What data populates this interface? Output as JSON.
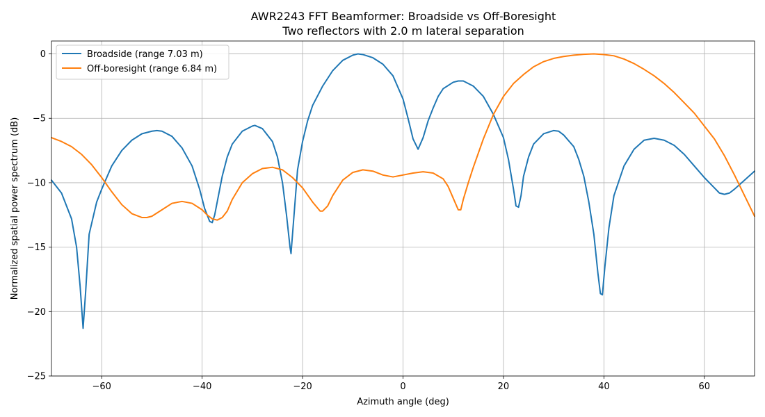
{
  "chart_data": {
    "type": "line",
    "title": "AWR2243 FFT Beamformer: Broadside vs Off-Boresight",
    "subtitle": "Two reflectors with 2.0 m lateral separation",
    "xlabel": "Azimuth angle (deg)",
    "ylabel": "Normalized spatial power spectrum (dB)",
    "xlim": [
      -70,
      70
    ],
    "ylim": [
      -25,
      1
    ],
    "xticks": [
      -60,
      -40,
      -20,
      0,
      20,
      40,
      60
    ],
    "yticks": [
      0,
      -5,
      -10,
      -15,
      -20,
      -25
    ],
    "xtick_labels": [
      "−60",
      "−40",
      "−20",
      "0",
      "20",
      "40",
      "60"
    ],
    "ytick_labels": [
      "0",
      "−5",
      "−10",
      "−15",
      "−20",
      "−25"
    ],
    "grid": true,
    "legend_position": "top-left",
    "series": [
      {
        "name": "Broadside (range 7.03 m)",
        "color": "#1f77b4",
        "points": [
          [
            -70,
            -9.8
          ],
          [
            -68,
            -10.8
          ],
          [
            -66,
            -12.8
          ],
          [
            -65,
            -15.0
          ],
          [
            -64.3,
            -18.0
          ],
          [
            -63.7,
            -21.3
          ],
          [
            -63.2,
            -18.5
          ],
          [
            -62.5,
            -14.0
          ],
          [
            -61,
            -11.5
          ],
          [
            -60,
            -10.5
          ],
          [
            -58,
            -8.7
          ],
          [
            -56,
            -7.5
          ],
          [
            -54,
            -6.7
          ],
          [
            -52,
            -6.2
          ],
          [
            -50,
            -6.0
          ],
          [
            -49,
            -5.95
          ],
          [
            -48,
            -6.0
          ],
          [
            -46,
            -6.4
          ],
          [
            -44,
            -7.3
          ],
          [
            -42,
            -8.7
          ],
          [
            -40.5,
            -10.5
          ],
          [
            -39.5,
            -12.0
          ],
          [
            -38.5,
            -13.0
          ],
          [
            -38,
            -13.1
          ],
          [
            -37.5,
            -12.5
          ],
          [
            -37,
            -11.5
          ],
          [
            -36,
            -9.5
          ],
          [
            -35,
            -8.0
          ],
          [
            -34,
            -7.0
          ],
          [
            -32,
            -6.0
          ],
          [
            -30,
            -5.6
          ],
          [
            -29.5,
            -5.55
          ],
          [
            -28,
            -5.8
          ],
          [
            -26,
            -6.8
          ],
          [
            -25,
            -8.0
          ],
          [
            -24,
            -10.0
          ],
          [
            -23.2,
            -12.5
          ],
          [
            -22.5,
            -15.0
          ],
          [
            -22.3,
            -15.5
          ],
          [
            -22,
            -14.0
          ],
          [
            -21.5,
            -11.5
          ],
          [
            -21,
            -9.0
          ],
          [
            -20,
            -6.8
          ],
          [
            -19,
            -5.2
          ],
          [
            -18,
            -4.0
          ],
          [
            -16,
            -2.5
          ],
          [
            -14,
            -1.3
          ],
          [
            -12,
            -0.5
          ],
          [
            -10,
            -0.1
          ],
          [
            -9,
            0.0
          ],
          [
            -8,
            -0.05
          ],
          [
            -6,
            -0.3
          ],
          [
            -4,
            -0.8
          ],
          [
            -2,
            -1.7
          ],
          [
            0,
            -3.5
          ],
          [
            1,
            -5.0
          ],
          [
            2,
            -6.6
          ],
          [
            3,
            -7.4
          ],
          [
            4,
            -6.5
          ],
          [
            5,
            -5.2
          ],
          [
            6,
            -4.2
          ],
          [
            7,
            -3.3
          ],
          [
            8,
            -2.7
          ],
          [
            10,
            -2.2
          ],
          [
            11,
            -2.1
          ],
          [
            12,
            -2.1
          ],
          [
            14,
            -2.5
          ],
          [
            16,
            -3.3
          ],
          [
            18,
            -4.7
          ],
          [
            20,
            -6.5
          ],
          [
            21,
            -8.2
          ],
          [
            22,
            -10.5
          ],
          [
            22.5,
            -11.8
          ],
          [
            23,
            -11.9
          ],
          [
            23.5,
            -11.0
          ],
          [
            24,
            -9.5
          ],
          [
            25,
            -8.0
          ],
          [
            26,
            -7.0
          ],
          [
            28,
            -6.2
          ],
          [
            30,
            -5.95
          ],
          [
            31,
            -6.0
          ],
          [
            32,
            -6.3
          ],
          [
            34,
            -7.2
          ],
          [
            35,
            -8.2
          ],
          [
            36,
            -9.5
          ],
          [
            37,
            -11.5
          ],
          [
            38,
            -14.0
          ],
          [
            38.8,
            -17.0
          ],
          [
            39.3,
            -18.6
          ],
          [
            39.7,
            -18.7
          ],
          [
            40.2,
            -16.5
          ],
          [
            41,
            -13.5
          ],
          [
            42,
            -11.0
          ],
          [
            44,
            -8.7
          ],
          [
            46,
            -7.4
          ],
          [
            48,
            -6.7
          ],
          [
            50,
            -6.55
          ],
          [
            52,
            -6.7
          ],
          [
            54,
            -7.1
          ],
          [
            56,
            -7.8
          ],
          [
            58,
            -8.7
          ],
          [
            60,
            -9.6
          ],
          [
            62,
            -10.4
          ],
          [
            63,
            -10.8
          ],
          [
            64,
            -10.9
          ],
          [
            65,
            -10.8
          ],
          [
            66,
            -10.5
          ],
          [
            68,
            -9.8
          ],
          [
            70,
            -9.1
          ]
        ]
      },
      {
        "name": "Off-boresight (range 6.84 m)",
        "color": "#ff7f0e",
        "points": [
          [
            -70,
            -6.5
          ],
          [
            -68,
            -6.8
          ],
          [
            -66,
            -7.2
          ],
          [
            -64,
            -7.8
          ],
          [
            -62,
            -8.6
          ],
          [
            -60,
            -9.6
          ],
          [
            -58,
            -10.7
          ],
          [
            -56,
            -11.7
          ],
          [
            -54,
            -12.4
          ],
          [
            -53,
            -12.55
          ],
          [
            -52,
            -12.7
          ],
          [
            -51,
            -12.7
          ],
          [
            -50,
            -12.6
          ],
          [
            -48,
            -12.1
          ],
          [
            -46,
            -11.6
          ],
          [
            -44,
            -11.45
          ],
          [
            -42,
            -11.6
          ],
          [
            -40,
            -12.1
          ],
          [
            -39,
            -12.5
          ],
          [
            -38,
            -12.8
          ],
          [
            -37,
            -12.9
          ],
          [
            -36,
            -12.7
          ],
          [
            -35,
            -12.2
          ],
          [
            -34,
            -11.3
          ],
          [
            -32,
            -10.0
          ],
          [
            -30,
            -9.3
          ],
          [
            -28,
            -8.9
          ],
          [
            -26,
            -8.8
          ],
          [
            -24,
            -9.0
          ],
          [
            -22,
            -9.6
          ],
          [
            -20,
            -10.4
          ],
          [
            -18,
            -11.5
          ],
          [
            -16.5,
            -12.2
          ],
          [
            -16,
            -12.2
          ],
          [
            -15,
            -11.8
          ],
          [
            -14,
            -11.0
          ],
          [
            -12,
            -9.8
          ],
          [
            -10,
            -9.2
          ],
          [
            -8,
            -9.0
          ],
          [
            -6,
            -9.1
          ],
          [
            -4,
            -9.4
          ],
          [
            -2,
            -9.55
          ],
          [
            0,
            -9.4
          ],
          [
            2,
            -9.25
          ],
          [
            4,
            -9.15
          ],
          [
            6,
            -9.25
          ],
          [
            8,
            -9.7
          ],
          [
            9,
            -10.3
          ],
          [
            10,
            -11.2
          ],
          [
            11,
            -12.1
          ],
          [
            11.5,
            -12.1
          ],
          [
            12,
            -11.3
          ],
          [
            13,
            -10.0
          ],
          [
            14,
            -8.8
          ],
          [
            16,
            -6.6
          ],
          [
            18,
            -4.7
          ],
          [
            20,
            -3.3
          ],
          [
            22,
            -2.3
          ],
          [
            24,
            -1.6
          ],
          [
            26,
            -1.0
          ],
          [
            28,
            -0.6
          ],
          [
            30,
            -0.35
          ],
          [
            32,
            -0.2
          ],
          [
            34,
            -0.1
          ],
          [
            36,
            -0.03
          ],
          [
            38,
            0.0
          ],
          [
            40,
            -0.05
          ],
          [
            42,
            -0.15
          ],
          [
            44,
            -0.4
          ],
          [
            46,
            -0.75
          ],
          [
            48,
            -1.2
          ],
          [
            50,
            -1.7
          ],
          [
            52,
            -2.3
          ],
          [
            54,
            -3.0
          ],
          [
            56,
            -3.8
          ],
          [
            58,
            -4.6
          ],
          [
            60,
            -5.6
          ],
          [
            62,
            -6.6
          ],
          [
            64,
            -7.9
          ],
          [
            66,
            -9.4
          ],
          [
            68,
            -11.0
          ],
          [
            70,
            -12.6
          ]
        ]
      }
    ]
  }
}
